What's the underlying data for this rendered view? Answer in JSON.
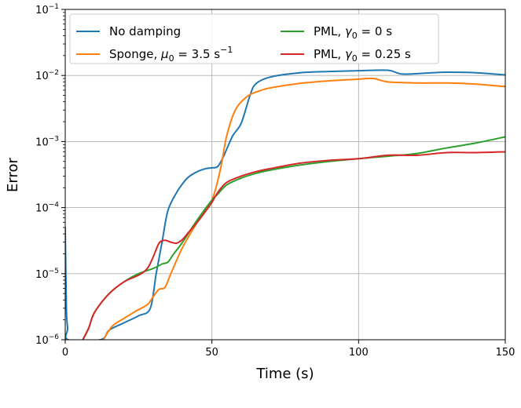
{
  "chart_data": {
    "type": "line",
    "xlabel": "Time (s)",
    "ylabel": "Error",
    "xlim": [
      0,
      150
    ],
    "ylim": [
      1e-06,
      0.1
    ],
    "yscale": "log",
    "grid": true,
    "legend_placement": "top",
    "x_ticks": [
      "0",
      "50",
      "100",
      "150"
    ],
    "y_ticks": [
      {
        "base": "10",
        "exp": "−6"
      },
      {
        "base": "10",
        "exp": "−5"
      },
      {
        "base": "10",
        "exp": "−4"
      },
      {
        "base": "10",
        "exp": "−3"
      },
      {
        "base": "10",
        "exp": "−2"
      },
      {
        "base": "10",
        "exp": "−1"
      }
    ],
    "series": [
      {
        "name": "No damping",
        "legend_parts": [
          {
            "t": "No damping"
          }
        ],
        "color": "#1f77b4",
        "x": [
          0,
          0.4,
          0.8,
          1,
          12,
          15,
          20,
          25,
          29,
          31,
          33,
          35,
          38,
          40,
          42,
          45,
          48,
          50,
          52,
          54,
          57,
          60,
          63,
          65,
          70,
          80,
          90,
          100,
          110,
          115,
          125,
          130,
          140,
          150
        ],
        "y": [
          5e-05,
          3e-06,
          1.5e-06,
          1e-06,
          1e-06,
          1.4e-06,
          1.8e-06,
          2.3e-06,
          3e-06,
          1e-05,
          3e-05,
          9e-05,
          0.00017,
          0.00023,
          0.00029,
          0.00035,
          0.00039,
          0.0004,
          0.00042,
          0.0006,
          0.0012,
          0.0019,
          0.005,
          0.0075,
          0.0095,
          0.011,
          0.0115,
          0.0118,
          0.012,
          0.0105,
          0.011,
          0.0112,
          0.011,
          0.0102
        ]
      },
      {
        "name": "Sponge, μ0 = 3.5 s⁻¹",
        "legend_parts": [
          {
            "t": "Sponge, "
          },
          {
            "t": "μ",
            "i": true
          },
          {
            "t": "0",
            "sub": true
          },
          {
            "t": " = 3.5 s"
          },
          {
            "t": "−1",
            "sup": true
          }
        ],
        "color": "#ff7f0e",
        "x": [
          13,
          16,
          20,
          24,
          28,
          30,
          32,
          34,
          36,
          40,
          45,
          50,
          53,
          55,
          58,
          62,
          66,
          70,
          80,
          90,
          100,
          105,
          110,
          120,
          130,
          140,
          150
        ],
        "y": [
          1e-06,
          1.6e-06,
          2.1e-06,
          2.7e-06,
          3.4e-06,
          4.5e-06,
          5.8e-06,
          6.2e-06,
          1e-05,
          2.5e-05,
          6e-05,
          0.00013,
          0.0004,
          0.0012,
          0.003,
          0.0048,
          0.0058,
          0.0065,
          0.0076,
          0.0083,
          0.0088,
          0.009,
          0.008,
          0.0077,
          0.0077,
          0.0074,
          0.0068
        ]
      },
      {
        "name": "PML, γ0 = 0 s",
        "legend_parts": [
          {
            "t": "PML, "
          },
          {
            "t": "γ",
            "i": true
          },
          {
            "t": "0",
            "sub": true
          },
          {
            "t": " = 0 s"
          }
        ],
        "color": "#2ca02c",
        "x": [
          6,
          8,
          10,
          15,
          20,
          25,
          30,
          33,
          35,
          37,
          40,
          45,
          50,
          52,
          55,
          60,
          65,
          70,
          80,
          90,
          100,
          110,
          120,
          130,
          140,
          150
        ],
        "y": [
          1e-06,
          1.5e-06,
          2.6e-06,
          5e-06,
          7.5e-06,
          1e-05,
          1.2e-05,
          1.4e-05,
          1.5e-05,
          2e-05,
          3e-05,
          6.5e-05,
          0.00013,
          0.00016,
          0.00022,
          0.00028,
          0.00033,
          0.00037,
          0.00044,
          0.0005,
          0.00055,
          0.0006,
          0.00066,
          0.0008,
          0.00095,
          0.00118
        ]
      },
      {
        "name": "PML, γ0 = 0.25 s",
        "legend_parts": [
          {
            "t": "PML, "
          },
          {
            "t": "γ",
            "i": true
          },
          {
            "t": "0",
            "sub": true
          },
          {
            "t": " = 0.25 s"
          }
        ],
        "color": "#d62728",
        "x": [
          6,
          8,
          10,
          15,
          20,
          25,
          28,
          30,
          32,
          34,
          36,
          38,
          40,
          42,
          45,
          48,
          50,
          52,
          55,
          60,
          65,
          70,
          80,
          90,
          100,
          110,
          120,
          130,
          140,
          150
        ],
        "y": [
          1e-06,
          1.5e-06,
          2.6e-06,
          5e-06,
          7.5e-06,
          9.5e-06,
          1.2e-05,
          1.8e-05,
          2.9e-05,
          3.2e-05,
          3e-05,
          2.9e-05,
          3.3e-05,
          4.2e-05,
          6e-05,
          9e-05,
          0.00012,
          0.00017,
          0.00024,
          0.0003,
          0.00035,
          0.00039,
          0.00047,
          0.00052,
          0.00055,
          0.00062,
          0.00062,
          0.00068,
          0.00068,
          0.0007
        ]
      }
    ]
  }
}
